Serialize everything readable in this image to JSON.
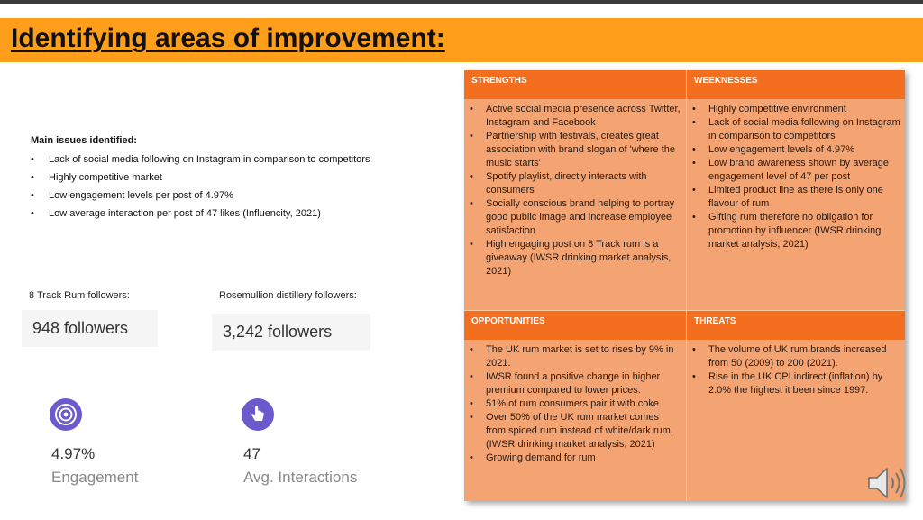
{
  "title": "Identifying areas of improvement:",
  "issues": {
    "heading": "Main issues identified:",
    "items": [
      "Lack of social media following on Instagram in comparison to competitors",
      "Highly competitive market",
      "Low engagement levels per post of 4.97%",
      "Low average interaction per post of 47 likes (Influencity, 2021)"
    ]
  },
  "followers": {
    "eight_track_label": "8 Track Rum followers:",
    "eight_track_value": "948 followers",
    "rosemullion_label": "Rosemullion distillery followers:",
    "rosemullion_value": "3,242 followers"
  },
  "stats": {
    "engagement_value": "4.97%",
    "engagement_label": "Engagement",
    "interactions_value": "47",
    "interactions_label": "Avg. Interactions"
  },
  "swot": {
    "strengths_title": "STRENGTHS",
    "weaknesses_title": "WEEKNESSES",
    "opportunities_title": "OPPORTUNITIES",
    "threats_title": "THREATS",
    "strengths": [
      "Active social media presence  across Twitter, Instagram and Facebook",
      "Partnership with festivals, creates great association with brand slogan of 'where the music starts'",
      "Spotify playlist, directly interacts with consumers",
      "Socially conscious brand helping to portray good public image and increase employee satisfaction",
      "High engaging post on 8 Track rum is a giveaway (IWSR drinking market analysis, 2021)"
    ],
    "weaknesses": [
      "Highly competitive environment",
      "Lack of social media following on Instagram in comparison to competitors",
      "Low engagement levels of 4.97%",
      "Low brand awareness shown by average engagement level of 47 per post",
      "Limited product line as there is only one flavour of rum",
      "Gifting rum therefore no obligation for promotion by influencer (IWSR drinking market analysis, 2021)"
    ],
    "opportunities": [
      "The UK rum market is set to rises by 9%  in 2021.",
      "IWSR found a positive change in higher premium  compared to lower prices.",
      "51% of rum consumers pair it with coke",
      "Over 50% of the UK rum market comes from spiced rum instead of white/dark rum. (IWSR drinking market analysis, 2021)",
      "Growing demand for rum"
    ],
    "threats": [
      "The volume of UK rum brands increased from 50 (2009) to 200 (2021).",
      "Rise in the UK CPI indirect (inflation) by 2.0% the highest it been since 1997."
    ]
  },
  "colors": {
    "title_bar": "#ff9e1b",
    "swot_header": "#f36e1e",
    "swot_body": "#f4a473",
    "icon_purple": "#6a5acd"
  }
}
